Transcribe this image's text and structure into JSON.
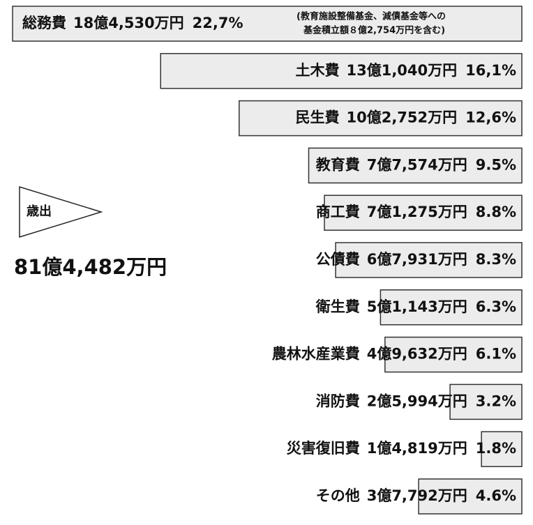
{
  "chart_data": {
    "type": "bar",
    "orientation": "horizontal",
    "title": "歳出",
    "total": "81億4,482万円",
    "color": "#ececec",
    "categories": [
      "総務費",
      "土木費",
      "民生費",
      "教育費",
      "商工費",
      "公債費",
      "衛生費",
      "農林水産業費",
      "消防費",
      "災害復旧費",
      "その他"
    ],
    "amounts": [
      "18億4,530万円",
      "13億1,040万円",
      "10億2,752万円",
      "7億7,574万円",
      "7億1,275万円",
      "6億7,931万円",
      "5億1,143万円",
      "4億9,632万円",
      "2億5,994万円",
      "1億4,819万円",
      "3億7,792万円"
    ],
    "values": [
      22.7,
      16.1,
      12.6,
      9.5,
      8.8,
      8.3,
      6.3,
      6.1,
      3.2,
      1.8,
      4.6
    ],
    "value_labels": [
      "22,7%",
      "16,1%",
      "12,6%",
      "9.5%",
      "8.8%",
      "8.3%",
      "6.3%",
      "6.1%",
      "3.2%",
      "1.8%",
      "4.6%"
    ],
    "annotation": [
      "(教育施設整備基金、減債基金等への",
      "基金積立額８億2,754万円を含む)"
    ]
  }
}
